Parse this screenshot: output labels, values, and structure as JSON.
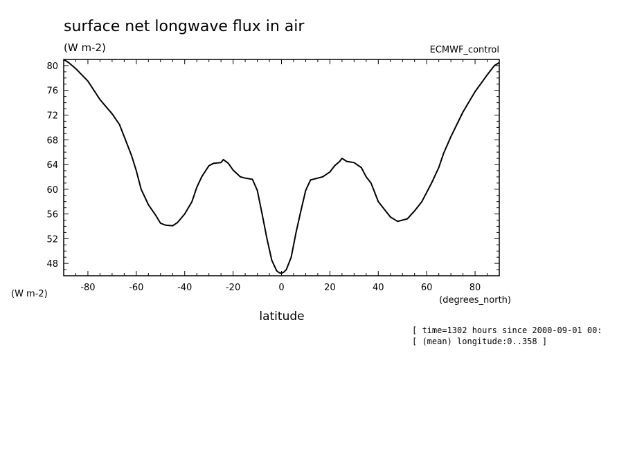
{
  "chart_data": {
    "type": "line",
    "title": "surface net longwave flux in air",
    "units_label": "(W m-2)",
    "dataset_label": "ECMWF_control",
    "xlabel": "latitude",
    "x_units": "(degrees_north)",
    "y_units_left": "(W m-2)",
    "xlim": [
      -90,
      90
    ],
    "ylim": [
      46,
      81
    ],
    "x_ticks": [
      -80,
      -60,
      -40,
      -20,
      0,
      20,
      40,
      60,
      80
    ],
    "y_ticks": [
      48,
      52,
      56,
      60,
      64,
      68,
      72,
      76,
      80
    ],
    "grid": false,
    "series": [
      {
        "x": [
          -90,
          -88,
          -85,
          -80,
          -75,
          -70,
          -67,
          -65,
          -62,
          -60,
          -58,
          -55,
          -52,
          -50,
          -48,
          -45,
          -43,
          -40,
          -37,
          -35,
          -33,
          -30,
          -28,
          -25,
          -24,
          -22,
          -20,
          -17,
          -15,
          -12,
          -10,
          -8,
          -6,
          -4,
          -2,
          -1,
          0,
          1,
          2,
          4,
          6,
          8,
          10,
          12,
          15,
          17,
          20,
          22,
          24,
          25,
          27,
          30,
          33,
          35,
          37,
          40,
          43,
          45,
          48,
          50,
          52,
          55,
          58,
          60,
          62,
          65,
          67,
          70,
          75,
          80,
          85,
          88,
          90
        ],
        "y": [
          81,
          80.5,
          79.5,
          77.5,
          74.5,
          72.2,
          70.5,
          68.5,
          65.5,
          63,
          60,
          57.5,
          55.8,
          54.5,
          54.2,
          54.1,
          54.6,
          56,
          58,
          60.3,
          62,
          63.8,
          64.2,
          64.3,
          64.8,
          64.2,
          63.1,
          62,
          61.8,
          61.6,
          59.8,
          56,
          52,
          48.5,
          46.8,
          46.5,
          46.4,
          46.6,
          47,
          49,
          53,
          56.5,
          59.8,
          61.5,
          61.8,
          62,
          62.8,
          63.8,
          64.5,
          65,
          64.5,
          64.3,
          63.5,
          62,
          61,
          58,
          56.5,
          55.5,
          54.8,
          55,
          55.2,
          56.5,
          58,
          59.5,
          61,
          63.5,
          65.8,
          68.5,
          72.5,
          75.8,
          78.5,
          80,
          80.5
        ]
      }
    ],
    "info_lines": [
      "[ time=1302 hours since 2000-09-01 00:",
      "[ (mean) longitude:0..358 ]"
    ]
  }
}
